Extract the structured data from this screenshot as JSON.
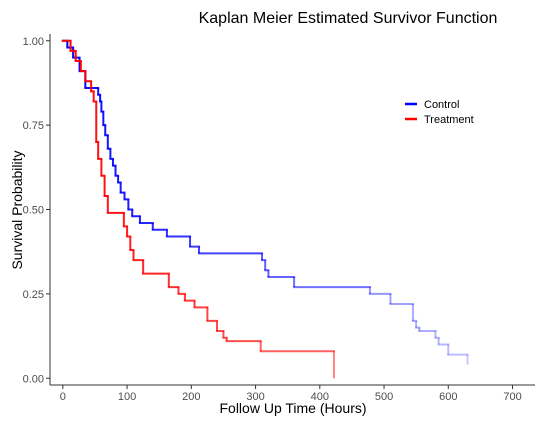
{
  "chart_data": {
    "type": "line",
    "title": "Kaplan Meier Estimated Survivor Function",
    "xlabel": "Follow Up Time (Hours)",
    "ylabel": "Survival Probability",
    "xlim": [
      -20,
      735
    ],
    "ylim": [
      -0.02,
      1.02
    ],
    "x_ticks": [
      0,
      100,
      200,
      300,
      400,
      500,
      600,
      700
    ],
    "y_ticks": [
      0.0,
      0.25,
      0.5,
      0.75,
      1.0
    ],
    "y_tick_labels": [
      "0.00",
      "0.25",
      "0.50",
      "0.75",
      "1.00"
    ],
    "x_tick_labels": [
      "0",
      "100",
      "200",
      "300",
      "400",
      "500",
      "600",
      "700"
    ],
    "grid": false,
    "legend_position": "right",
    "step": true,
    "series": [
      {
        "name": "Control",
        "color": "#0000ff",
        "fade": true,
        "x": [
          0,
          7,
          16,
          26,
          35,
          44,
          55,
          58,
          60,
          63,
          66,
          70,
          74,
          78,
          82,
          86,
          90,
          96,
          102,
          108,
          120,
          140,
          162,
          198,
          212,
          310,
          315,
          320,
          360,
          478,
          510,
          545,
          550,
          555,
          580,
          585,
          600,
          630
        ],
        "y": [
          1.0,
          0.98,
          0.95,
          0.91,
          0.86,
          0.86,
          0.84,
          0.82,
          0.79,
          0.75,
          0.72,
          0.68,
          0.65,
          0.63,
          0.6,
          0.58,
          0.55,
          0.53,
          0.5,
          0.48,
          0.46,
          0.44,
          0.42,
          0.39,
          0.37,
          0.35,
          0.32,
          0.3,
          0.27,
          0.25,
          0.22,
          0.17,
          0.15,
          0.14,
          0.12,
          0.1,
          0.07,
          0.04
        ]
      },
      {
        "name": "Treatment",
        "color": "#ff0000",
        "fade": true,
        "x": [
          0,
          12,
          20,
          28,
          35,
          44,
          48,
          52,
          55,
          60,
          65,
          70,
          95,
          100,
          105,
          110,
          125,
          165,
          180,
          190,
          205,
          225,
          240,
          250,
          255,
          308,
          422
        ],
        "y": [
          1.0,
          0.97,
          0.94,
          0.91,
          0.88,
          0.85,
          0.82,
          0.7,
          0.65,
          0.6,
          0.54,
          0.49,
          0.45,
          0.42,
          0.38,
          0.35,
          0.31,
          0.27,
          0.25,
          0.23,
          0.21,
          0.17,
          0.14,
          0.12,
          0.11,
          0.08,
          0.0
        ]
      }
    ]
  }
}
